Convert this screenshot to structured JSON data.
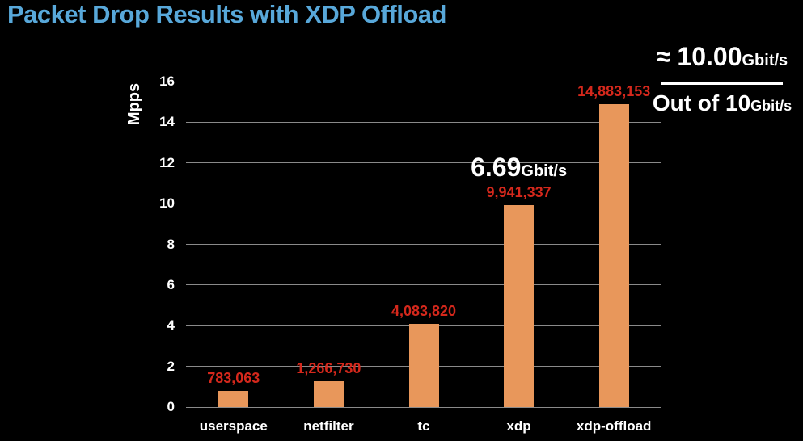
{
  "slide": {
    "title": "Packet Drop Results with XDP Offload"
  },
  "colors": {
    "background": "#000000",
    "title": "#58a8da",
    "bar": "#e8975b",
    "value_label": "#d5281c",
    "gridline": "#8a8a8a",
    "text": "#ffffff"
  },
  "chart_data": {
    "type": "bar",
    "title": "Packet Drop Results with XDP Offload",
    "xlabel": "",
    "ylabel": "Mpps",
    "ylim": [
      0,
      16
    ],
    "yticks": [
      0,
      2,
      4,
      6,
      8,
      10,
      12,
      14,
      16
    ],
    "grid": true,
    "legend": false,
    "categories": [
      "userspace",
      "netfilter",
      "tc",
      "xdp",
      "xdp-offload"
    ],
    "values_mpps": [
      0.783063,
      1.26673,
      4.08382,
      9.941337,
      14.883153
    ],
    "values_pps": [
      783063,
      1266730,
      4083820,
      9941337,
      14883153
    ],
    "bar_labels": [
      "783,063",
      "1,266,730",
      "4,083,820",
      "9,941,337",
      "14,883,153"
    ],
    "annotations": {
      "xdp_throughput": {
        "value": "6.69",
        "unit": "Gbit/s",
        "target_category": "xdp"
      },
      "offload_throughput": {
        "approx": "≈",
        "value": "10.00",
        "unit": "Gbit/s",
        "denominator": "Out of 10",
        "denominator_unit": "Gbit/s",
        "target_category": "xdp-offload"
      }
    }
  }
}
